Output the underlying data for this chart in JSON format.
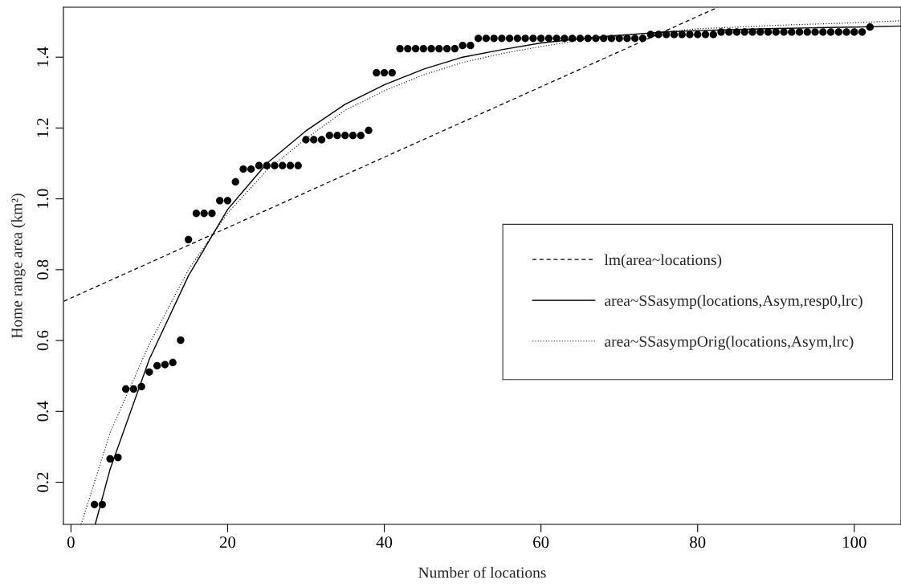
{
  "chart_data": {
    "type": "scatter",
    "xlabel": "Number of locations",
    "ylabel": "Home range area (km²)",
    "xlim": [
      -0.96,
      105.96
    ],
    "ylim": [
      0.081,
      1.541
    ],
    "xticks": [
      0,
      20,
      40,
      60,
      80,
      100
    ],
    "yticks": [
      0.2,
      0.4,
      0.6,
      0.8,
      {
        "value": 1.0,
        "label": "1.0"
      },
      1.2,
      1.4
    ],
    "grid": false,
    "legend": "right",
    "series": [
      {
        "marker": "circle",
        "color": "#000000",
        "x": [
          3,
          4,
          5,
          6,
          7,
          8,
          9,
          10,
          11,
          12,
          13,
          14,
          15,
          16,
          17,
          18,
          19,
          20,
          21,
          22,
          23,
          24,
          25,
          26,
          27,
          28,
          29,
          30,
          31,
          32,
          33,
          34,
          35,
          36,
          37,
          38,
          39,
          40,
          41,
          42,
          43,
          44,
          45,
          46,
          47,
          48,
          49,
          50,
          51,
          52,
          53,
          54,
          55,
          56,
          57,
          58,
          59,
          60,
          61,
          62,
          63,
          64,
          65,
          66,
          67,
          68,
          69,
          70,
          71,
          72,
          73,
          74,
          75,
          76,
          77,
          78,
          79,
          80,
          81,
          82,
          83,
          84,
          85,
          86,
          87,
          88,
          89,
          90,
          91,
          92,
          93,
          94,
          95,
          96,
          97,
          98,
          99,
          100,
          101,
          102
        ],
        "values": [
          0.137,
          0.137,
          0.266,
          0.27,
          0.463,
          0.463,
          0.47,
          0.511,
          0.529,
          0.532,
          0.538,
          0.601,
          0.885,
          0.959,
          0.959,
          0.959,
          0.995,
          0.995,
          1.048,
          1.084,
          1.084,
          1.094,
          1.094,
          1.094,
          1.094,
          1.094,
          1.094,
          1.167,
          1.167,
          1.167,
          1.179,
          1.179,
          1.179,
          1.179,
          1.179,
          1.193,
          1.356,
          1.356,
          1.356,
          1.424,
          1.424,
          1.424,
          1.424,
          1.424,
          1.424,
          1.424,
          1.424,
          1.433,
          1.433,
          1.453,
          1.453,
          1.453,
          1.453,
          1.453,
          1.453,
          1.453,
          1.453,
          1.453,
          1.453,
          1.453,
          1.453,
          1.453,
          1.453,
          1.453,
          1.453,
          1.453,
          1.453,
          1.453,
          1.453,
          1.453,
          1.453,
          1.464,
          1.464,
          1.464,
          1.464,
          1.464,
          1.464,
          1.464,
          1.464,
          1.464,
          1.471,
          1.471,
          1.471,
          1.471,
          1.471,
          1.471,
          1.471,
          1.471,
          1.471,
          1.471,
          1.471,
          1.471,
          1.471,
          1.471,
          1.471,
          1.471,
          1.471,
          1.471,
          1.471,
          1.485
        ]
      },
      {
        "type": "line",
        "name": "lm(area~locations)",
        "line_style": "dashed",
        "color": "#000000",
        "x": [
          -0.9,
          82.6
        ],
        "values": [
          0.711,
          1.541
        ]
      },
      {
        "type": "line",
        "name": "area~SSasymp(locations,Asym,resp0,lrc)",
        "line_style": "solid",
        "color": "#000000",
        "x": [
          3.1,
          5,
          10,
          15,
          20,
          25,
          30,
          35,
          40,
          45,
          50,
          55,
          60,
          65,
          70,
          75,
          80,
          85,
          90,
          95,
          100,
          105.96
        ],
        "values": [
          0.081,
          0.237,
          0.547,
          0.783,
          0.97,
          1.1,
          1.192,
          1.267,
          1.322,
          1.366,
          1.4,
          1.421,
          1.44,
          1.452,
          1.462,
          1.47,
          1.475,
          1.478,
          1.481,
          1.483,
          1.485,
          1.488
        ]
      },
      {
        "type": "line",
        "name": "area~SSasympOrig(locations,Asym,lrc)",
        "line_style": "dotted",
        "color": "#000000",
        "x": [
          1.3,
          5,
          10,
          15,
          20,
          25,
          30,
          35,
          40,
          45,
          50,
          55,
          60,
          65,
          70,
          75,
          80,
          90,
          100,
          105.96
        ],
        "values": [
          0.081,
          0.34,
          0.59,
          0.8,
          0.96,
          1.08,
          1.17,
          1.25,
          1.305,
          1.35,
          1.385,
          1.41,
          1.43,
          1.448,
          1.46,
          1.47,
          1.48,
          1.49,
          1.497,
          1.503
        ]
      }
    ]
  }
}
